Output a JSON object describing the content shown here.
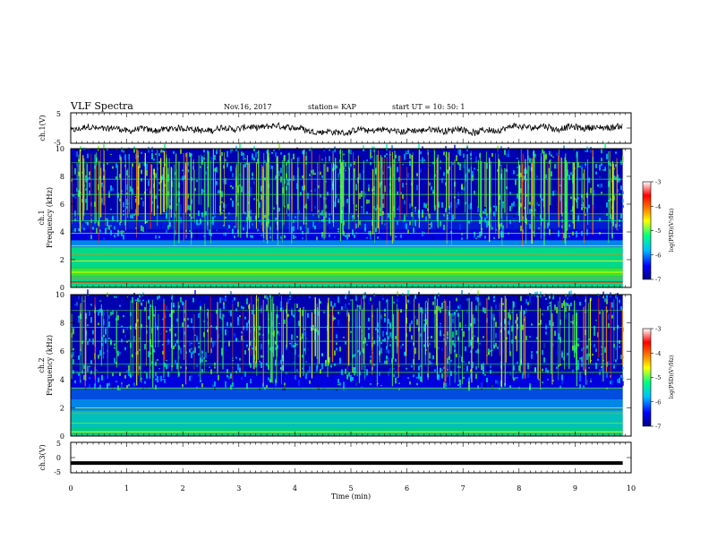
{
  "header": {
    "title": "VLF Spectra",
    "date": "Nov.16, 2017",
    "station": "station= KAP",
    "start_time": "start  UT =   10: 50: 1"
  },
  "chart_data": [
    {
      "type": "line",
      "name": "ch1-waveform",
      "ylabel": "ch.1(V)",
      "ylim": [
        -5,
        5
      ],
      "y_ticks": [
        "5",
        "-5"
      ],
      "xlim": [
        0,
        10
      ],
      "trace_extent_min": 9.85,
      "note": "noisy waveform between about -2.5 and 1.5 V"
    },
    {
      "type": "heatmap",
      "name": "ch1-spectrogram",
      "ylabel": "ch.1\nFrequency  (kHz)",
      "ylim": [
        0,
        10
      ],
      "y_ticks": [
        "0",
        "2",
        "4",
        "6",
        "8",
        "10"
      ],
      "xlim": [
        0,
        10
      ],
      "data_extent_min": 9.85,
      "colorbar": {
        "label": "log(PSD)(V²/Hz)",
        "range": [
          -7,
          -3
        ],
        "ticks": [
          "-3",
          "-4",
          "-5",
          "-6",
          "-7"
        ],
        "colors": [
          "#000080",
          "#0000ff",
          "#00bfff",
          "#00ff80",
          "#ffff00",
          "#ff8000",
          "#ff0000",
          "#ffffff"
        ]
      }
    },
    {
      "type": "heatmap",
      "name": "ch2-spectrogram",
      "ylabel": "ch.2\nFrequency  (kHz)",
      "ylim": [
        0,
        10
      ],
      "y_ticks": [
        "0",
        "2",
        "4",
        "6",
        "8",
        "10"
      ],
      "xlim": [
        0,
        10
      ],
      "data_extent_min": 9.85,
      "colorbar": {
        "label": "log(PSD)(V²/Hz)",
        "range": [
          -7,
          -3
        ],
        "ticks": [
          "-3",
          "-4",
          "-5",
          "-6",
          "-7"
        ],
        "colors": [
          "#000080",
          "#0000ff",
          "#00bfff",
          "#00ff80",
          "#ffff00",
          "#ff8000",
          "#ff0000",
          "#ffffff"
        ]
      }
    },
    {
      "type": "line",
      "name": "ch3-waveform",
      "ylabel": "ch.3(V)",
      "ylim": [
        -5,
        5
      ],
      "y_ticks": [
        "5",
        "0",
        "-5"
      ],
      "xlim": [
        0,
        10
      ],
      "constant_value": -1.8,
      "trace_extent_min": 9.85
    }
  ],
  "x_axis": {
    "label": "Time  (min)",
    "ticks": [
      "0",
      "1",
      "2",
      "3",
      "4",
      "5",
      "6",
      "7",
      "8",
      "9",
      "10"
    ]
  }
}
